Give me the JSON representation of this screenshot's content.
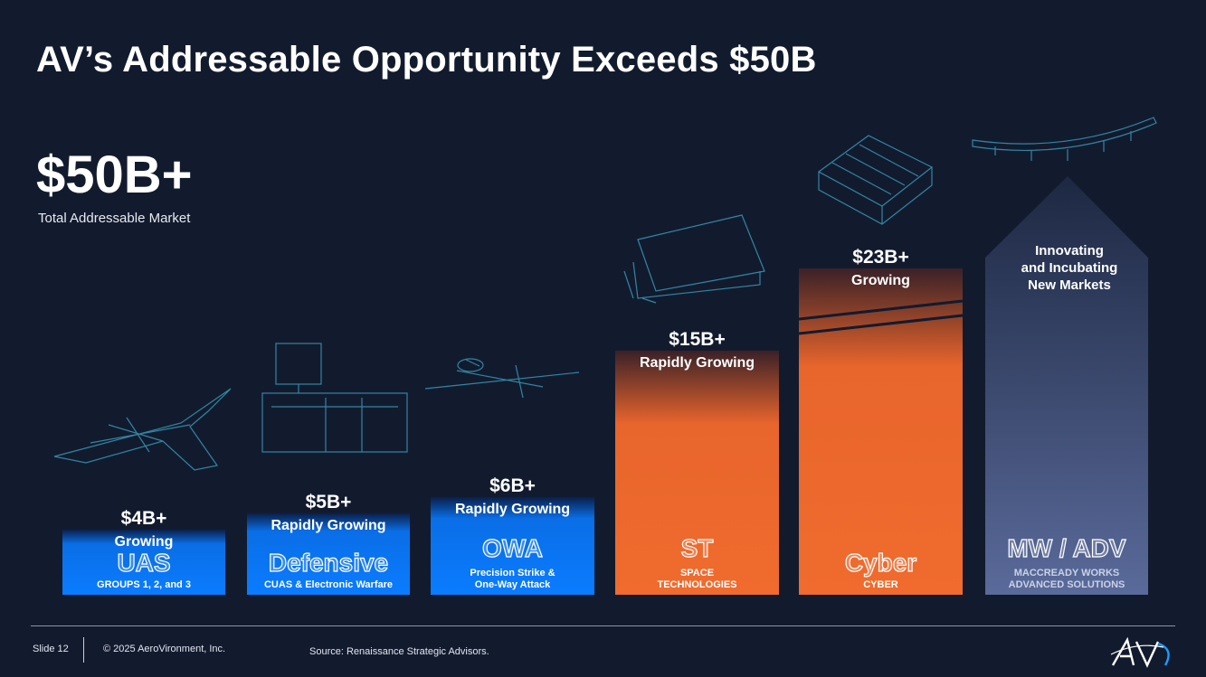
{
  "title": "AV’s Addressable Opportunity Exceeds $50B",
  "tam": {
    "value": "$50B+",
    "label": "Total Addressable Market"
  },
  "chart_data": {
    "type": "bar",
    "title": "",
    "categories": [
      "UAS",
      "Defensive",
      "OWA",
      "ST",
      "Cyber",
      "MW / ADV"
    ],
    "value_labels": [
      "$4B+",
      "$5B+",
      "$6B+",
      "$15B+",
      "$23B+",
      ""
    ],
    "status_labels": [
      "Growing",
      "Rapidly Growing",
      "Rapidly Growing",
      "Rapidly Growing",
      "Growing",
      ""
    ],
    "descriptions": [
      [
        "GROUPS 1, 2, and 3"
      ],
      [
        "CUAS & Electronic Warfare"
      ],
      [
        "Precision Strike &",
        "One-Way Attack"
      ],
      [
        "SPACE",
        "TECHNOLOGIES"
      ],
      [
        "CYBER"
      ],
      [
        "MACCREADY WORKS",
        "ADVANCED SOLUTIONS"
      ]
    ],
    "values": [
      4,
      5,
      6,
      15,
      23,
      null
    ],
    "axis_broken_bar": "Cyber",
    "colors": {
      "blue": "#0a7cff",
      "orange": "#f06b2d",
      "slate": "#5a6a9a",
      "background": "#121b2e"
    },
    "arrow_text": [
      "Innovating",
      "and Incubating",
      "New Markets"
    ]
  },
  "footer": {
    "slide": "Slide 12",
    "copyright": "© 2025 AeroVironment, Inc.",
    "source": "Source: Renaissance Strategic Advisors."
  },
  "logo_text": "AV"
}
